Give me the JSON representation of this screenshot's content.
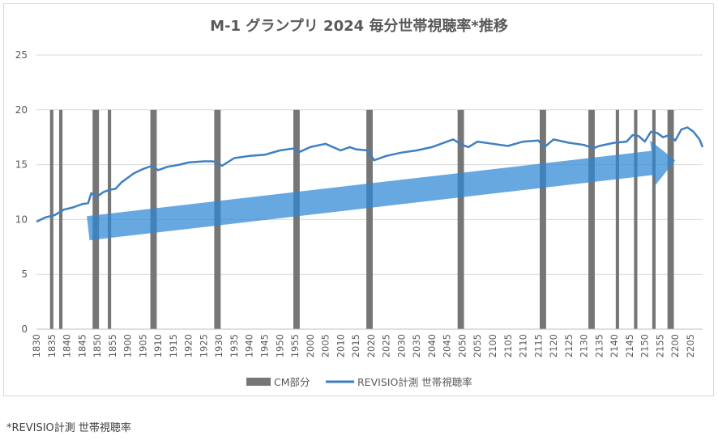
{
  "chart_data": {
    "type": "line",
    "title": "M-1 グランプリ 2024 毎分世帯視聴率*推移",
    "xlabel": "",
    "ylabel": "",
    "ylim": [
      0,
      25
    ],
    "yticks": [
      "0",
      "5",
      "10",
      "15",
      "20",
      "25"
    ],
    "grid": true,
    "legend_position": "bottom",
    "x_range": [
      "18:30",
      "22:09"
    ],
    "x_tick_labels": [
      "1830",
      "1835",
      "1840",
      "1845",
      "1850",
      "1855",
      "1900",
      "1905",
      "1910",
      "1915",
      "1920",
      "1925",
      "1930",
      "1935",
      "1940",
      "1945",
      "1950",
      "1955",
      "2000",
      "2005",
      "2010",
      "2015",
      "2020",
      "2025",
      "2030",
      "2035",
      "2040",
      "2045",
      "2050",
      "2055",
      "2100",
      "2105",
      "2110",
      "2115",
      "2120",
      "2125",
      "2130",
      "2135",
      "2140",
      "2145",
      "2150",
      "2155",
      "2200",
      "2205"
    ],
    "series": [
      {
        "name": "REVISIO計測 世帯視聴率",
        "color": "#3f7fc1",
        "x": [
          "18:30",
          "18:33",
          "18:36",
          "18:39",
          "18:42",
          "18:45",
          "18:47",
          "18:48",
          "18:49",
          "18:50",
          "18:52",
          "18:54",
          "18:56",
          "18:58",
          "19:00",
          "19:02",
          "19:05",
          "19:08",
          "19:10",
          "19:13",
          "19:17",
          "19:20",
          "19:25",
          "19:28",
          "19:30",
          "19:31",
          "19:35",
          "19:40",
          "19:45",
          "19:50",
          "19:55",
          "19:56",
          "20:00",
          "20:05",
          "20:10",
          "20:13",
          "20:15",
          "20:19",
          "20:21",
          "20:23",
          "20:25",
          "20:30",
          "20:35",
          "20:40",
          "20:45",
          "20:47",
          "20:50",
          "20:52",
          "20:55",
          "21:00",
          "21:05",
          "21:10",
          "21:15",
          "21:17",
          "21:20",
          "21:25",
          "21:30",
          "21:33",
          "21:35",
          "21:40",
          "21:44",
          "21:46",
          "21:48",
          "21:50",
          "21:52",
          "21:54",
          "21:56",
          "21:58",
          "22:00",
          "22:02",
          "22:04",
          "22:06",
          "22:08",
          "22:09"
        ],
        "values": [
          9.8,
          10.2,
          10.4,
          10.9,
          11.1,
          11.4,
          11.5,
          12.4,
          12.2,
          12.1,
          12.5,
          12.7,
          12.8,
          13.4,
          13.8,
          14.2,
          14.6,
          14.9,
          14.5,
          14.8,
          15.0,
          15.2,
          15.3,
          15.3,
          15.1,
          14.9,
          15.6,
          15.8,
          15.9,
          16.3,
          16.5,
          16.1,
          16.6,
          16.9,
          16.3,
          16.6,
          16.4,
          16.3,
          15.4,
          15.6,
          15.8,
          16.1,
          16.3,
          16.6,
          17.1,
          17.3,
          16.8,
          16.6,
          17.1,
          16.9,
          16.7,
          17.1,
          17.2,
          16.6,
          17.3,
          17.0,
          16.8,
          16.5,
          16.7,
          17.0,
          17.1,
          17.7,
          17.6,
          17.1,
          18.0,
          17.9,
          17.5,
          17.7,
          17.2,
          18.2,
          18.4,
          18.0,
          17.3,
          16.6
        ]
      },
      {
        "name": "CM部分",
        "color": "#767676",
        "type": "bar",
        "values": 20,
        "x": [
          "18:35",
          "18:38",
          "18:49",
          "18:50",
          "18:54",
          "19:08",
          "19:09",
          "19:29",
          "19:30",
          "19:55",
          "19:56",
          "20:19",
          "20:20",
          "20:49",
          "20:50",
          "21:16",
          "21:17",
          "21:32",
          "21:33",
          "21:41",
          "21:47",
          "21:53",
          "21:58",
          "21:59"
        ]
      }
    ],
    "annotation": "upward trend arrow"
  },
  "footnote": "*REVISIO計測 世帯視聴率"
}
